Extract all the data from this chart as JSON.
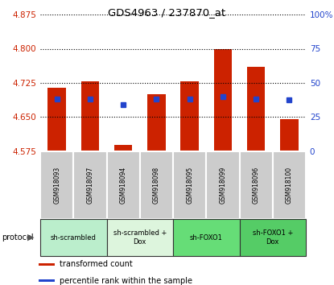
{
  "title": "GDS4963 / 237870_at",
  "samples": [
    "GSM918093",
    "GSM918097",
    "GSM918094",
    "GSM918098",
    "GSM918095",
    "GSM918099",
    "GSM918096",
    "GSM918100"
  ],
  "red_values": [
    4.715,
    4.728,
    4.59,
    4.7,
    4.728,
    4.8,
    4.76,
    4.645
  ],
  "blue_values": [
    4.69,
    4.69,
    4.678,
    4.69,
    4.69,
    4.695,
    4.69,
    4.688
  ],
  "ymin": 4.575,
  "ymax": 4.875,
  "yticks": [
    4.575,
    4.65,
    4.725,
    4.8,
    4.875
  ],
  "right_yticks": [
    0,
    25,
    50,
    75,
    100
  ],
  "right_ytick_labels": [
    "0",
    "25",
    "50",
    "75",
    "100%"
  ],
  "bar_color": "#cc2200",
  "dot_color": "#2244cc",
  "plot_bg": "#ffffff",
  "protocols": [
    {
      "label": "sh-scrambled",
      "start": 0,
      "end": 2,
      "color": "#bbeecc"
    },
    {
      "label": "sh-scrambled +\nDox",
      "start": 2,
      "end": 4,
      "color": "#ddf5dd"
    },
    {
      "label": "sh-FOXO1",
      "start": 4,
      "end": 6,
      "color": "#66dd77"
    },
    {
      "label": "sh-FOXO1 +\nDox",
      "start": 6,
      "end": 8,
      "color": "#55cc66"
    }
  ],
  "legend_red": "transformed count",
  "legend_blue": "percentile rank within the sample",
  "bar_width": 0.55,
  "base": 4.575
}
